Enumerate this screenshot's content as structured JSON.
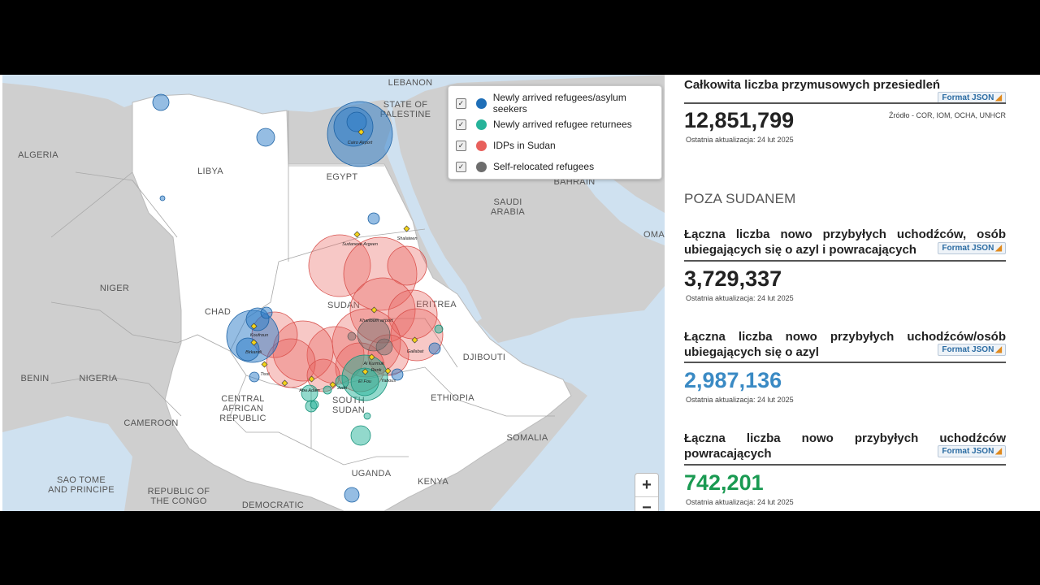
{
  "map": {
    "country_labels": {
      "lebanon": "LEBANON",
      "palestine_line1": "STATE OF",
      "palestine_line2": "PALESTINE",
      "algeria": "ALGERIA",
      "libya": "LIBYA",
      "egypt": "EGYPT",
      "bahrain": "BAHRAIN",
      "saudi_line1": "SAUDI",
      "saudi_line2": "ARABIA",
      "oman": "OMA",
      "niger": "NIGER",
      "chad": "CHAD",
      "sudan": "SUDAN",
      "eritrea": "ERITREA",
      "djibouti": "DJIBOUTI",
      "benin": "BENIN",
      "nigeria": "NIGERIA",
      "car_line1": "CENTRAL",
      "car_line2": "AFRICAN",
      "car_line3": "REPUBLIC",
      "south_sudan_line1": "SOUTH",
      "south_sudan_line2": "SUDAN",
      "ethiopia": "ETHIOPIA",
      "cameroon": "CAMEROON",
      "somalia": "SOMALIA",
      "sao_tome_line1": "SAO TOME",
      "sao_tome_line2": "AND PRINCIPE",
      "congo_line1": "REPUBLIC OF",
      "congo_line2": "THE CONGO",
      "uganda": "UGANDA",
      "kenya": "KENYA",
      "drc": "DEMOCRATIC"
    },
    "place_labels": {
      "cairo": "Cairo Airport",
      "sudanese_argeen": "Sudanese Argeen",
      "shalateen": "Shalateen",
      "khartoum": "Khartoum airport",
      "koufroun": "Koufroun",
      "birkandi": "Birkandi",
      "gallabat": "Gallabat",
      "al_kurmuk": "Al Kurmuk",
      "renk": "Renk",
      "joda": "Joda",
      "tissi": "Tissi",
      "abu_adam": "Abu Adam",
      "el_fou": "El Fou",
      "yabous": "Yabous"
    },
    "colors": {
      "refugees": "#2b7bc8",
      "returnees": "#25b99a",
      "idps": "#e8605c",
      "self_relocated": "#707070"
    },
    "zoom_in": "+",
    "zoom_out": "−"
  },
  "legend": {
    "items": [
      {
        "label": "Newly arrived refugees/asylum seekers",
        "color": "#1f6fb8"
      },
      {
        "label": "Newly arrived refugee returnees",
        "color": "#26b39a"
      },
      {
        "label": "IDPs in Sudan",
        "color": "#e8605c"
      },
      {
        "label": "Self-relocated refugees",
        "color": "#6d6d6d"
      }
    ],
    "check": "✓"
  },
  "panel": {
    "total_title": "Całkowita liczba przymusowych przesiedleń",
    "json_label": "Format JSON",
    "rss_icon": "◢",
    "total_value": "12,851,799",
    "total_value_color": "#222222",
    "source": "Źródło - COR, IOM, OCHA, UNHCR",
    "updated": "Ostatnia aktualizacja: 24 lut 2025",
    "outside_heading": "POZA SUDANEM",
    "stats": [
      {
        "title": "Łączna liczba nowo przybyłych uchodźców, osób ubiegających się o azyl i powracających",
        "value": "3,729,337",
        "color": "#222222",
        "updated": "Ostatnia aktualizacja: 24 lut 2025"
      },
      {
        "title": "Łączna liczba nowo przybyłych uchodźców/osób ubiegających się o azyl",
        "value": "2,987,136",
        "color": "#3a8ac4",
        "updated": "Ostatnia aktualizacja: 24 lut 2025"
      },
      {
        "title": "Łączna liczba nowo przybyłych uchodźców powracających",
        "value": "742,201",
        "color": "#1a9a52",
        "updated": "Ostatnia aktualizacja: 24 lut 2025"
      }
    ]
  }
}
